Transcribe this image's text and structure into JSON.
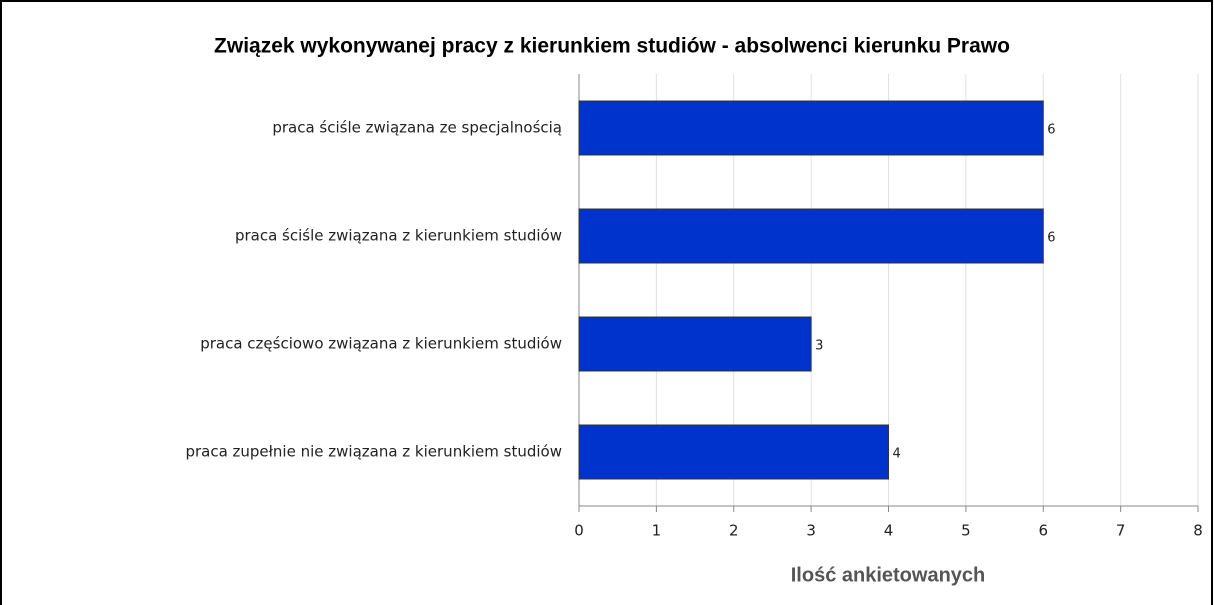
{
  "chart_data": {
    "type": "bar",
    "orientation": "horizontal",
    "title": "Związek wykonywanej pracy z kierunkiem studiów - absolwenci kierunku Prawo",
    "categories": [
      "praca ściśle związana ze specjalnością",
      "praca ściśle związana z kierunkiem studiów",
      "praca częściowo związana z kierunkiem studiów",
      "praca zupełnie nie związana z kierunkiem studiów"
    ],
    "values": [
      6,
      6,
      3,
      4
    ],
    "color": "#0033cc",
    "xlabel": "Ilość ankietowanych",
    "xlim": [
      0,
      8
    ],
    "xticks": [
      0,
      1,
      2,
      3,
      4,
      5,
      6,
      7,
      8
    ],
    "grid": true
  }
}
